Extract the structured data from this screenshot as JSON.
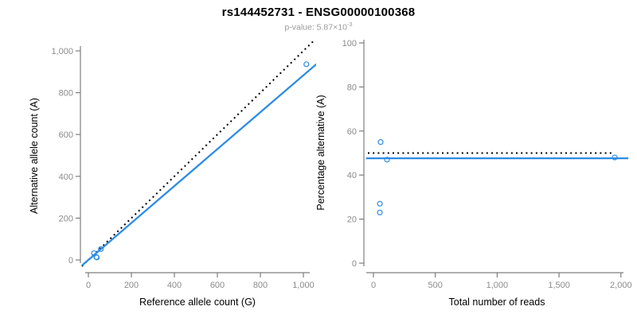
{
  "header": {
    "title": "rs144452731 - ENSG00000100368",
    "subtitle_prefix": "p-value: 5.87×10",
    "subtitle_exponent": "-3"
  },
  "colors": {
    "accent_blue": "#2D8CE4",
    "dotted_black": "#000000",
    "axis_gray": "#7e7e7e",
    "tick_label_gray": "#8b8b8b",
    "subtitle_gray": "#9a9a9a"
  },
  "chart_data": [
    {
      "type": "scatter",
      "xlabel": "Reference allele count (G)",
      "ylabel": "Alternative allele count (A)",
      "xlim": [
        0,
        1000
      ],
      "ylim": [
        0,
        1000
      ],
      "grid": false,
      "legend": "none",
      "marker": "open-circle",
      "xticks": {
        "values": [
          0,
          200,
          400,
          600,
          800,
          1000
        ],
        "labels": [
          "0",
          "200",
          "400",
          "600",
          "800",
          "1,000"
        ]
      },
      "yticks": {
        "values": [
          0,
          200,
          400,
          600,
          800,
          1000
        ],
        "labels": [
          "0",
          "200",
          "400",
          "600",
          "800",
          "1,000"
        ]
      },
      "points": [
        [
          26,
          32
        ],
        [
          37,
          14
        ],
        [
          39,
          12
        ],
        [
          58,
          52
        ],
        [
          1014,
          936
        ]
      ],
      "lines": [
        {
          "name": "identity-line",
          "style": "dotted",
          "color": "#000000",
          "from": [
            -30,
            -30
          ],
          "to": [
            1070,
            1070
          ]
        },
        {
          "name": "fit-line",
          "style": "solid",
          "color": "#2D8CE4",
          "from": [
            -30,
            -26
          ],
          "to": [
            1070,
            945
          ]
        }
      ]
    },
    {
      "type": "scatter",
      "xlabel": "Total number of reads",
      "ylabel": "Percentage alternative (A)",
      "xlim": [
        0,
        2000
      ],
      "ylim": [
        0,
        100
      ],
      "grid": false,
      "legend": "none",
      "marker": "open-circle",
      "xticks": {
        "values": [
          0,
          500,
          1000,
          1500,
          2000
        ],
        "labels": [
          "0",
          "500",
          "1,000",
          "1,500",
          "2,000"
        ]
      },
      "yticks": {
        "values": [
          0,
          20,
          40,
          60,
          80,
          100
        ],
        "labels": [
          "0",
          "20",
          "40",
          "60",
          "80",
          "100"
        ]
      },
      "points": [
        [
          58,
          55
        ],
        [
          52,
          27
        ],
        [
          52,
          23
        ],
        [
          110,
          47
        ],
        [
          1950,
          48
        ]
      ],
      "lines": [
        {
          "name": "expected-50pct-line",
          "style": "dotted",
          "color": "#000000",
          "from": [
            -45,
            50
          ],
          "to": [
            1945,
            50
          ]
        },
        {
          "name": "fit-line",
          "style": "solid",
          "color": "#2D8CE4",
          "from": [
            -60,
            47.6
          ],
          "to": [
            2060,
            47.6
          ]
        }
      ]
    }
  ]
}
